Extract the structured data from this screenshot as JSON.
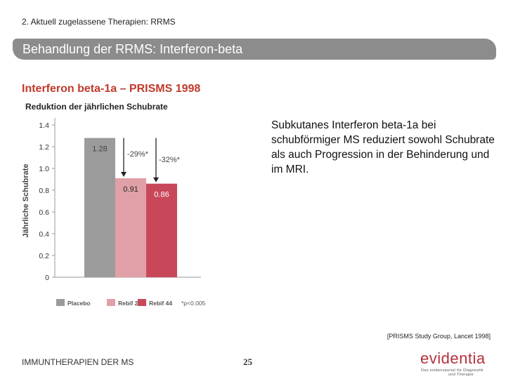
{
  "header": {
    "breadcrumb": "2. Aktuell zugelassene Therapien: RRMS",
    "title": "Behandlung der RRMS: Interferon-beta"
  },
  "main": {
    "subheading": "Interferon beta-1a – PRISMS 1998",
    "description": "Subkutanes Interferon beta-1a bei schubförmiger MS reduziert sowohl Schubrate als auch Progression in der Behinderung und im MRI.",
    "citation": "[PRISMS Study Group, Lancet 1998]"
  },
  "footer": {
    "left_text": "IMMUNTHERAPIEN DER MS",
    "page_number": "25",
    "logo": {
      "word": "evidentia",
      "tagline_1": "Das evidenzportal für Diagnostik",
      "tagline_2": "und Therapie"
    }
  },
  "chart_data": {
    "type": "bar",
    "title": "Reduktion der jährlichen Schubrate",
    "ylabel": "Jährliche Schubrate",
    "xlabel": "",
    "ylim": [
      0,
      1.4
    ],
    "yticks": [
      "0",
      "0.2",
      "0.4",
      "0.6",
      "0.8",
      "1.0",
      "1.2",
      "1.4"
    ],
    "categories": [
      "Placebo",
      "Rebif 22",
      "Rebif 44"
    ],
    "values": [
      1.28,
      0.91,
      0.86
    ],
    "value_labels": [
      "1.28",
      "0.91",
      "0.86"
    ],
    "colors": [
      "#9b9b9b",
      "#e1a0a8",
      "#c8485a"
    ],
    "annotations": [
      "-29%*",
      "-32%*"
    ],
    "footnote": "*p<0.005",
    "grid": false,
    "legend": "bottom"
  }
}
